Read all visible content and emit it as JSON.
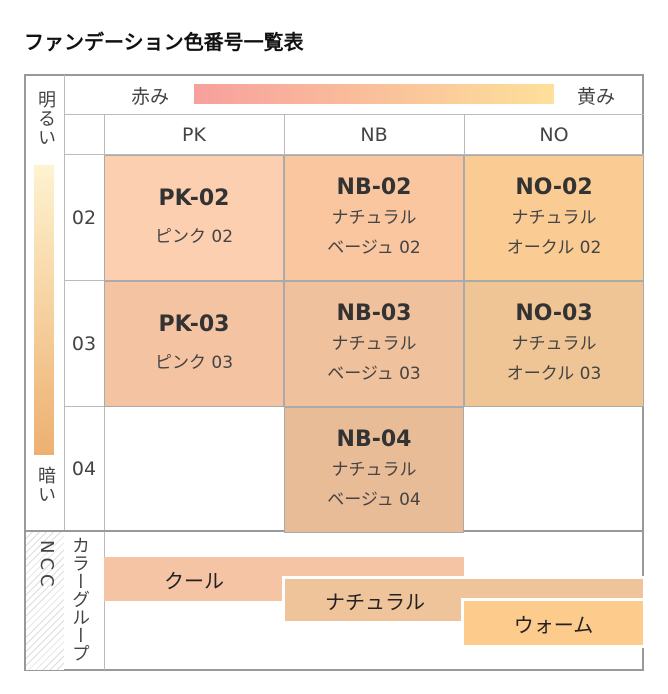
{
  "title": "ファンデーション色番号一覧表",
  "axis": {
    "red": "赤み",
    "yellow": "黄み",
    "bright": "明るい",
    "dark": "暗い"
  },
  "columns": [
    "PK",
    "NB",
    "NO"
  ],
  "rows": [
    "02",
    "03",
    "04"
  ],
  "cells": [
    {
      "code": "PK-02",
      "name1": "ピンク 02",
      "name2": "",
      "color": "#fccfb0"
    },
    {
      "code": "NB-02",
      "name1": "ナチュラル",
      "name2": "ベージュ 02",
      "color": "#f9c6a0"
    },
    {
      "code": "NO-02",
      "name1": "ナチュラル",
      "name2": "オークル 02",
      "color": "#fbcb94"
    },
    {
      "code": "PK-03",
      "name1": "ピンク 03",
      "name2": "",
      "color": "#f3c3a2"
    },
    {
      "code": "NB-03",
      "name1": "ナチュラル",
      "name2": "ベージュ 03",
      "color": "#efc19c"
    },
    {
      "code": "NO-03",
      "name1": "ナチュラル",
      "name2": "オークル 03",
      "color": "#efc596"
    },
    {
      "code": "NB-04",
      "name1": "ナチュラル",
      "name2": "ベージュ 04",
      "color": "#e9bc98"
    }
  ],
  "ncc": {
    "label": "NCC",
    "group": "カラーグループ",
    "groups": [
      {
        "name": "クール",
        "color": "#f5c4a5"
      },
      {
        "name": "ナチュラル",
        "color": "#f0c49a"
      },
      {
        "name": "ウォーム",
        "color": "#fdcb8c"
      }
    ]
  }
}
